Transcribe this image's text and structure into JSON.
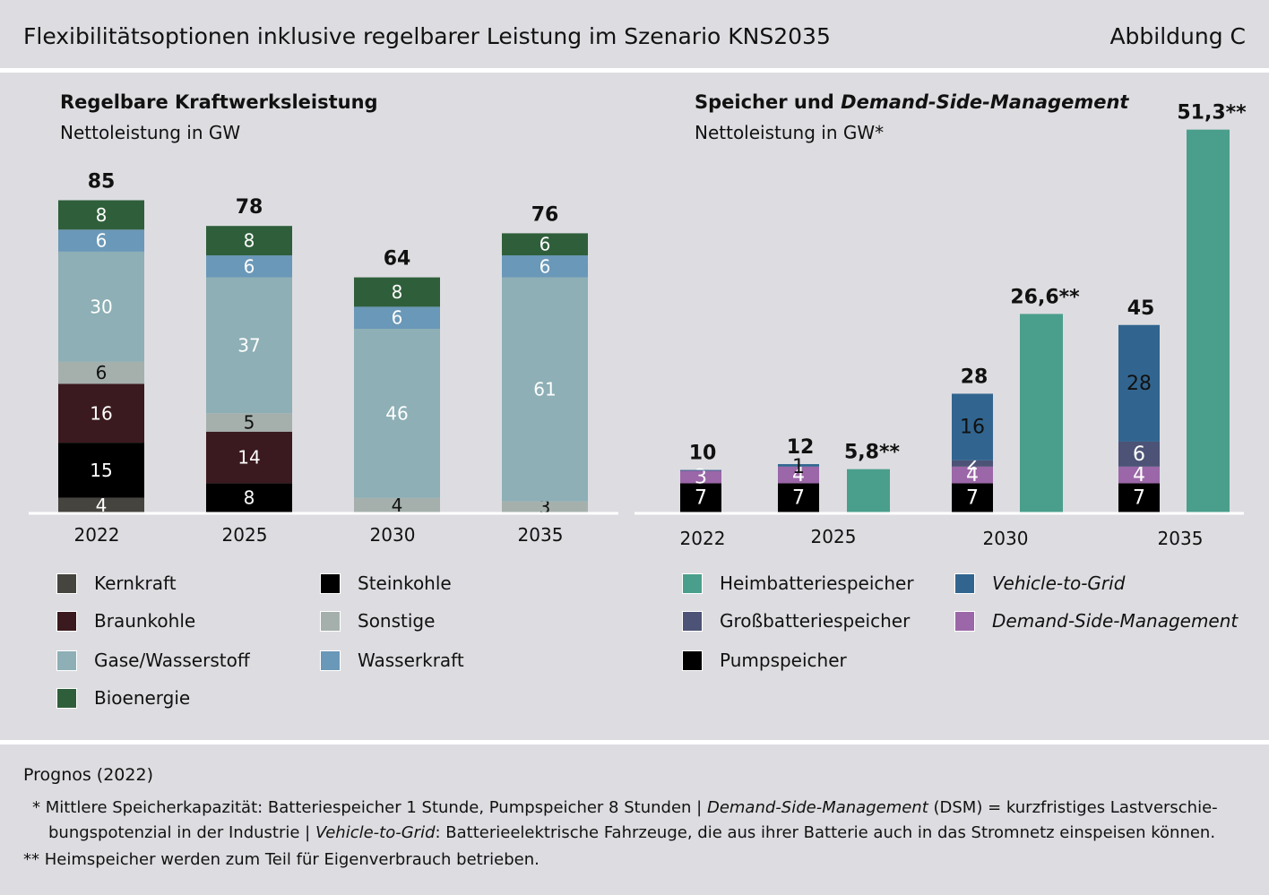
{
  "header": {
    "title": "Flexibilitätsoptionen inklusive regelbarer Leistung im Szenario KNS2035",
    "figure": "Abbildung C"
  },
  "left_panel": {
    "title": "Regelbare Kraftwerksleistung",
    "subtitle": "Nettoleistung in GW"
  },
  "right_panel": {
    "title_part1": "Speicher und ",
    "title_part2": "Demand-Side-Management",
    "subtitle": "Nettoleistung in GW*"
  },
  "colors": {
    "kernkraft": "#46443f",
    "braunkohle": "#3a1a1e",
    "steinkohle": "#000000",
    "sonstige": "#a5b0ad",
    "gase": "#8dafb5",
    "wasserkraft": "#6a98b8",
    "bioenergie": "#2f5f3a",
    "heimbatterie": "#4a9e8c",
    "grossbatterie": "#4c5376",
    "pumpspeicher": "#000000",
    "v2g": "#31658f",
    "dsm": "#9b67a8"
  },
  "chart_data": [
    {
      "type": "bar",
      "stacked": true,
      "title": "Regelbare Kraftwerksleistung",
      "ylabel": "Nettoleistung in GW",
      "categories": [
        "2022",
        "2025",
        "2030",
        "2035"
      ],
      "totals": [
        "85",
        "78",
        "64",
        "76"
      ],
      "series": [
        {
          "name": "Kernkraft",
          "key": "kernkraft",
          "values": [
            4,
            0,
            0,
            0
          ]
        },
        {
          "name": "Steinkohle",
          "key": "steinkohle",
          "values": [
            15,
            8,
            0,
            0
          ]
        },
        {
          "name": "Braunkohle",
          "key": "braunkohle",
          "values": [
            16,
            14,
            0,
            0
          ]
        },
        {
          "name": "Sonstige",
          "key": "sonstige",
          "values": [
            6,
            5,
            4,
            3
          ]
        },
        {
          "name": "Gase/Wasserstoff",
          "key": "gase",
          "values": [
            30,
            37,
            46,
            61
          ]
        },
        {
          "name": "Wasserkraft",
          "key": "wasserkraft",
          "values": [
            6,
            6,
            6,
            6
          ]
        },
        {
          "name": "Bioenergie",
          "key": "bioenergie",
          "values": [
            8,
            8,
            8,
            6
          ]
        }
      ]
    },
    {
      "type": "bar",
      "stacked": true,
      "title": "Speicher und Demand-Side-Management",
      "ylabel": "Nettoleistung in GW*",
      "categories": [
        "2022",
        "2025",
        "2030",
        "2035"
      ],
      "stacks": [
        {
          "category": "2022",
          "total": "10",
          "segments": [
            {
              "key": "pumpspeicher",
              "value": 7,
              "label": "7"
            },
            {
              "key": "dsm",
              "value": 3,
              "label": "3"
            },
            {
              "key": "v2g",
              "value": 0.2,
              "label": ""
            }
          ]
        },
        {
          "category": "2025",
          "total": "12",
          "segments": [
            {
              "key": "pumpspeicher",
              "value": 7,
              "label": "7"
            },
            {
              "key": "dsm",
              "value": 4,
              "label": "4"
            },
            {
              "key": "v2g",
              "value": 0.6,
              "label": "1"
            }
          ]
        },
        {
          "category": "2030",
          "total": "28",
          "segments": [
            {
              "key": "pumpspeicher",
              "value": 7,
              "label": "7"
            },
            {
              "key": "dsm",
              "value": 4,
              "label": "4"
            },
            {
              "key": "grossbatterie",
              "value": 1.5,
              "label": "2"
            },
            {
              "key": "v2g",
              "value": 16,
              "label": "16"
            }
          ]
        },
        {
          "category": "2035",
          "total": "45",
          "segments": [
            {
              "key": "pumpspeicher",
              "value": 7,
              "label": "7"
            },
            {
              "key": "dsm",
              "value": 4,
              "label": "4"
            },
            {
              "key": "grossbatterie",
              "value": 6,
              "label": "6"
            },
            {
              "key": "v2g",
              "value": 28,
              "label": "28"
            }
          ]
        }
      ],
      "heimbatterie": [
        {
          "category": "2025",
          "value": 5.8,
          "label": "5,8**"
        },
        {
          "category": "2030",
          "value": 26.6,
          "label": "26,6**"
        },
        {
          "category": "2035",
          "value": 51.3,
          "label": "51,3**"
        }
      ]
    }
  ],
  "legend_left": [
    {
      "key": "kernkraft",
      "label": "Kernkraft"
    },
    {
      "key": "steinkohle",
      "label": "Steinkohle"
    },
    {
      "key": "braunkohle",
      "label": "Braunkohle"
    },
    {
      "key": "sonstige",
      "label": "Sonstige"
    },
    {
      "key": "gase",
      "label": "Gase/Wasserstoff"
    },
    {
      "key": "wasserkraft",
      "label": "Wasserkraft"
    },
    {
      "key": "bioenergie",
      "label": "Bioenergie"
    }
  ],
  "legend_right": [
    {
      "key": "heimbatterie",
      "label": "Heimbatteriespeicher",
      "italic": false
    },
    {
      "key": "v2g",
      "label": "Vehicle-to-Grid",
      "italic": true
    },
    {
      "key": "grossbatterie",
      "label": "Großbatteriespeicher",
      "italic": false
    },
    {
      "key": "dsm",
      "label": "Demand-Side-Management",
      "italic": true
    },
    {
      "key": "pumpspeicher",
      "label": "Pumpspeicher",
      "italic": false
    }
  ],
  "footer": {
    "source": "Prognos (2022)",
    "note1_a": "* Mittlere Speicherkapazität: Batteriespeicher 1 Stunde, Pumpspeicher 8 Stunden | ",
    "note1_b": "Demand-Side-Management",
    "note1_c": " (DSM) = kurzfristiges Lastverschie-",
    "note1_d": "bungspotenzial in der Industrie | ",
    "note1_e": "Vehicle-to-Grid",
    "note1_f": ": Batterieelektrische Fahrzeuge, die aus ihrer Batterie auch in das Stromnetz einspeisen können.",
    "note2": "** Heimspeicher werden zum Teil für Eigenverbrauch betrieben."
  }
}
